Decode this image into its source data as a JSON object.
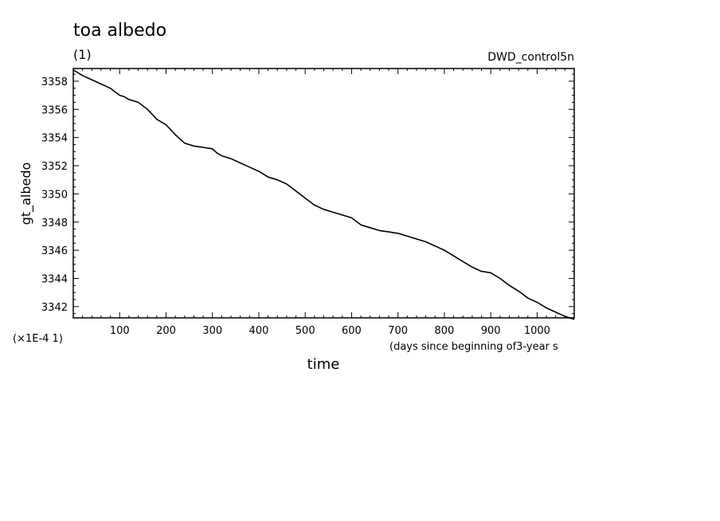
{
  "title": "toa albedo",
  "subtitle": "(1)",
  "run_label": "DWD_control5n",
  "multiplier_label": "(×1E-4 1)",
  "xaxis_note": "(days since beginning of3-year s",
  "chart_data": {
    "type": "line",
    "xlabel": "time",
    "ylabel": "gt_albedo",
    "xlim": [
      0,
      1080
    ],
    "ylim": [
      3341.2,
      3358.9
    ],
    "xticks": [
      100,
      200,
      300,
      400,
      500,
      600,
      700,
      800,
      900,
      1000
    ],
    "yticks": [
      3342,
      3344,
      3346,
      3348,
      3350,
      3352,
      3354,
      3356,
      3358
    ],
    "grid": false,
    "series": [
      {
        "color": "#000000",
        "x": [
          0,
          20,
          40,
          60,
          80,
          100,
          110,
          120,
          140,
          160,
          180,
          200,
          220,
          240,
          250,
          260,
          280,
          300,
          310,
          320,
          330,
          340,
          360,
          380,
          400,
          420,
          440,
          460,
          480,
          500,
          520,
          540,
          560,
          580,
          600,
          620,
          640,
          660,
          680,
          700,
          720,
          740,
          760,
          780,
          800,
          820,
          840,
          860,
          880,
          900,
          920,
          940,
          960,
          980,
          1000,
          1020,
          1040,
          1060,
          1080
        ],
        "y": [
          3358.8,
          3358.4,
          3358.1,
          3357.8,
          3357.5,
          3357.0,
          3356.9,
          3356.7,
          3356.5,
          3356.0,
          3355.3,
          3354.9,
          3354.2,
          3353.6,
          3353.5,
          3353.4,
          3353.3,
          3353.2,
          3352.9,
          3352.7,
          3352.6,
          3352.5,
          3352.2,
          3351.9,
          3351.6,
          3351.2,
          3351.0,
          3350.7,
          3350.2,
          3349.7,
          3349.2,
          3348.9,
          3348.7,
          3348.5,
          3348.3,
          3347.8,
          3347.6,
          3347.4,
          3347.3,
          3347.2,
          3347.0,
          3346.8,
          3346.6,
          3346.3,
          3346.0,
          3345.6,
          3345.2,
          3344.8,
          3344.5,
          3344.4,
          3344.0,
          3343.5,
          3343.1,
          3342.6,
          3342.3,
          3341.9,
          3341.6,
          3341.3,
          3341.1
        ]
      }
    ]
  }
}
